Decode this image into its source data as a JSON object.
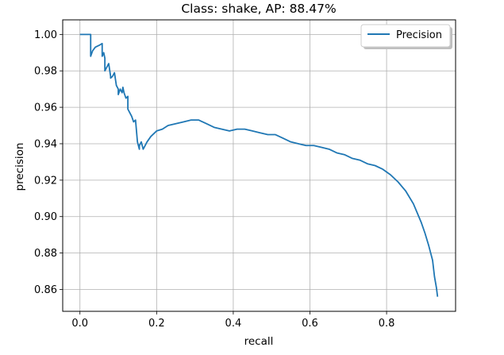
{
  "chart_data": {
    "type": "line",
    "title": "Class: shake, AP: 88.47%",
    "xlabel": "recall",
    "ylabel": "precision",
    "xlim": [
      -0.045,
      0.98
    ],
    "ylim": [
      0.848,
      1.008
    ],
    "grid": true,
    "legend": {
      "position": "top-right",
      "entries": [
        "Precision"
      ]
    },
    "x_ticks": [
      {
        "value": 0.0,
        "label": "0.0"
      },
      {
        "value": 0.2,
        "label": "0.2"
      },
      {
        "value": 0.4,
        "label": "0.4"
      },
      {
        "value": 0.6,
        "label": "0.6"
      },
      {
        "value": 0.8,
        "label": "0.8"
      }
    ],
    "y_ticks": [
      {
        "value": 0.86,
        "label": "0.86"
      },
      {
        "value": 0.88,
        "label": "0.88"
      },
      {
        "value": 0.9,
        "label": "0.90"
      },
      {
        "value": 0.92,
        "label": "0.92"
      },
      {
        "value": 0.94,
        "label": "0.94"
      },
      {
        "value": 0.96,
        "label": "0.96"
      },
      {
        "value": 0.98,
        "label": "0.98"
      },
      {
        "value": 1.0,
        "label": "1.00"
      }
    ],
    "series": [
      {
        "name": "Precision",
        "color": "#1f77b4",
        "x": [
          0.0,
          0.028,
          0.028,
          0.033,
          0.04,
          0.05,
          0.058,
          0.058,
          0.062,
          0.065,
          0.065,
          0.07,
          0.075,
          0.08,
          0.08,
          0.085,
          0.09,
          0.095,
          0.1,
          0.1,
          0.105,
          0.11,
          0.112,
          0.115,
          0.12,
          0.125,
          0.125,
          0.13,
          0.135,
          0.14,
          0.145,
          0.15,
          0.155,
          0.155,
          0.16,
          0.165,
          0.17,
          0.175,
          0.185,
          0.2,
          0.215,
          0.23,
          0.25,
          0.27,
          0.29,
          0.31,
          0.33,
          0.35,
          0.37,
          0.39,
          0.41,
          0.43,
          0.45,
          0.47,
          0.49,
          0.51,
          0.53,
          0.55,
          0.57,
          0.59,
          0.61,
          0.63,
          0.65,
          0.67,
          0.69,
          0.71,
          0.73,
          0.75,
          0.77,
          0.79,
          0.81,
          0.83,
          0.85,
          0.87,
          0.88,
          0.89,
          0.9,
          0.91,
          0.92,
          0.925,
          0.93,
          0.933
        ],
        "y": [
          1.0,
          1.0,
          0.988,
          0.991,
          0.993,
          0.994,
          0.995,
          0.988,
          0.99,
          0.987,
          0.98,
          0.982,
          0.984,
          0.977,
          0.976,
          0.977,
          0.979,
          0.972,
          0.97,
          0.967,
          0.97,
          0.968,
          0.971,
          0.968,
          0.965,
          0.966,
          0.959,
          0.957,
          0.955,
          0.952,
          0.953,
          0.941,
          0.937,
          0.939,
          0.941,
          0.937,
          0.939,
          0.941,
          0.944,
          0.947,
          0.948,
          0.95,
          0.951,
          0.952,
          0.953,
          0.953,
          0.951,
          0.949,
          0.948,
          0.947,
          0.948,
          0.948,
          0.947,
          0.946,
          0.945,
          0.945,
          0.943,
          0.941,
          0.94,
          0.939,
          0.939,
          0.938,
          0.937,
          0.935,
          0.934,
          0.932,
          0.931,
          0.929,
          0.928,
          0.926,
          0.923,
          0.919,
          0.914,
          0.907,
          0.902,
          0.897,
          0.891,
          0.884,
          0.876,
          0.867,
          0.861,
          0.856
        ]
      }
    ]
  }
}
